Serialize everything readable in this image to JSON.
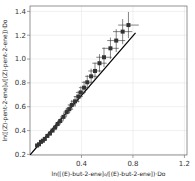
{
  "chart_data": {
    "type": "scatter",
    "xlabel": "ln([(E)-but-2-ene]₀/[(E)-but-2-ene])·Dᴏ",
    "ylabel": "ln([(Z)-pent-2-ene]₀/[(Z)-pent-2-ene])·Dᴏ",
    "xlim": [
      0.0,
      1.22
    ],
    "ylim": [
      0.195,
      1.445
    ],
    "xticks": [
      0.4,
      0.8,
      1.2
    ],
    "yticks": [
      0.2,
      0.4,
      0.6,
      0.8,
      {
        "value": 1.0,
        "label": "1.0"
      },
      1.2,
      1.4
    ],
    "series": [
      {
        "type": "line",
        "color": "#000000",
        "x": [
          0.0,
          0.82
        ],
        "values": [
          0.195,
          1.22
        ]
      },
      {
        "type": "scatter",
        "color": "#333333",
        "marker": "square",
        "x": [
          0.055,
          0.07,
          0.085,
          0.1,
          0.115,
          0.135,
          0.155,
          0.175,
          0.195,
          0.215,
          0.235,
          0.26,
          0.285,
          0.305,
          0.325,
          0.35,
          0.375,
          0.395,
          0.42,
          0.445,
          0.475,
          0.505,
          0.54,
          0.575,
          0.625,
          0.67,
          0.72,
          0.765
        ],
        "values": [
          0.275,
          0.285,
          0.305,
          0.315,
          0.33,
          0.355,
          0.375,
          0.4,
          0.425,
          0.455,
          0.48,
          0.515,
          0.555,
          0.58,
          0.615,
          0.645,
          0.685,
          0.72,
          0.76,
          0.805,
          0.855,
          0.9,
          0.965,
          1.015,
          1.09,
          1.155,
          1.23,
          1.285
        ],
        "x_err": [
          0.012,
          0.012,
          0.012,
          0.013,
          0.013,
          0.014,
          0.016,
          0.018,
          0.02,
          0.022,
          0.024,
          0.026,
          0.028,
          0.03,
          0.032,
          0.034,
          0.036,
          0.038,
          0.04,
          0.043,
          0.047,
          0.052,
          0.056,
          0.06,
          0.065,
          0.07,
          0.075,
          0.08
        ],
        "y_err": [
          0.012,
          0.012,
          0.013,
          0.013,
          0.014,
          0.015,
          0.017,
          0.019,
          0.022,
          0.025,
          0.028,
          0.032,
          0.036,
          0.038,
          0.042,
          0.045,
          0.048,
          0.052,
          0.056,
          0.06,
          0.065,
          0.07,
          0.076,
          0.082,
          0.09,
          0.096,
          0.105,
          0.11
        ]
      }
    ]
  }
}
